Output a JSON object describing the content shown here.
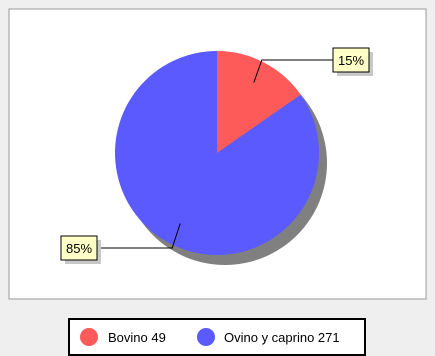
{
  "colors": {
    "background": "#efefef",
    "plot_background": "#ffffff",
    "plot_border": "#9a9a9a",
    "shadow": "#808080",
    "label_fill": "#ffffc8",
    "legend_border": "#000000"
  },
  "chart_data": {
    "type": "pie",
    "title": "",
    "slices": [
      {
        "name": "Bovino",
        "value": 49,
        "percent_label": "15%",
        "color": "#ff5a5a"
      },
      {
        "name": "Ovino y caprino",
        "value": 271,
        "percent_label": "85%",
        "color": "#5a5aff"
      }
    ],
    "legend": {
      "placement": "bottom",
      "items": [
        {
          "label": "Bovino 49",
          "color": "#ff5a5a"
        },
        {
          "label": "Ovino y caprino 271",
          "color": "#5a5aff"
        }
      ]
    }
  }
}
